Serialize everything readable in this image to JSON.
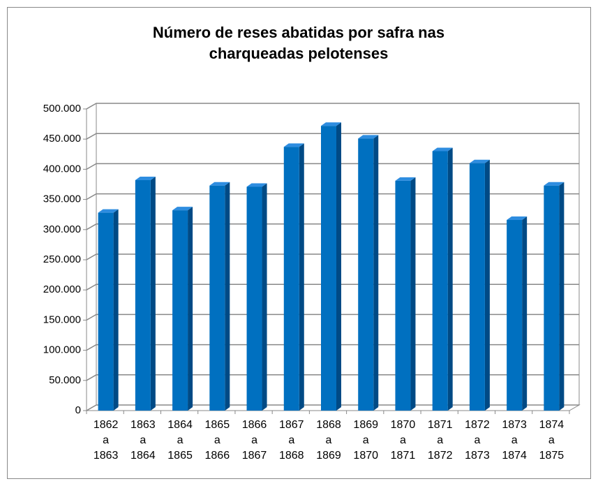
{
  "chart_data": {
    "type": "bar",
    "title": "Número de reses abatidas por safra nas charqueadas pelotenses",
    "categories": [
      "1862 a 1863",
      "1863 a 1864",
      "1864 a 1865",
      "1865 a 1866",
      "1866 a 1867",
      "1867 a 1868",
      "1868 a 1869",
      "1869 a 1870",
      "1870 a 1871",
      "1871 a 1872",
      "1872 a 1873",
      "1873 a 1874",
      "1874 a 1875"
    ],
    "values": [
      328000,
      382000,
      332000,
      373000,
      371000,
      437000,
      472000,
      451000,
      381000,
      430000,
      410000,
      316000,
      373000
    ],
    "color": "#0070c0",
    "ylim": [
      0,
      500000
    ],
    "yticks": [
      0,
      {
        "value": 50000,
        "label": "50.000"
      },
      {
        "value": 100000,
        "label": "100.000"
      },
      {
        "value": 150000,
        "label": "150.000"
      },
      {
        "value": 200000,
        "label": "200.000"
      },
      {
        "value": 250000,
        "label": "250.000"
      },
      {
        "value": 300000,
        "label": "300.000"
      },
      {
        "value": 350000,
        "label": "350.000"
      },
      {
        "value": 400000,
        "label": "400.000"
      },
      {
        "value": 450000,
        "label": "450.000"
      },
      {
        "value": 500000,
        "label": "500.000"
      }
    ],
    "grid": true
  }
}
